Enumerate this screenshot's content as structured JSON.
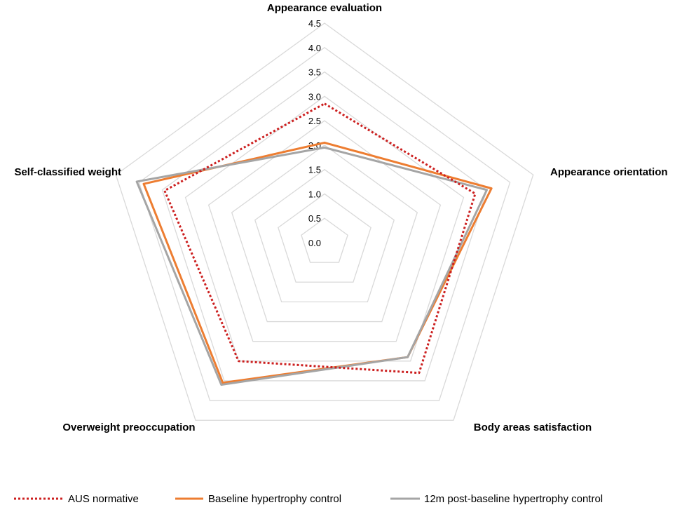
{
  "chart_data": {
    "type": "radar",
    "axes": [
      "Appearance evaluation",
      "Appearance orientation",
      "Body areas satisfaction",
      "Overweight preoccupation",
      "Self-classified weight"
    ],
    "r_range": [
      0,
      4.5
    ],
    "ticks": [
      "0.0",
      "0.5",
      "1.0",
      "1.5",
      "2.0",
      "2.5",
      "3.0",
      "3.5",
      "4.0",
      "4.5"
    ],
    "tick_values": [
      0,
      0.5,
      1.0,
      1.5,
      2.0,
      2.5,
      3.0,
      3.5,
      4.0,
      4.5
    ],
    "grid": true,
    "legend_position": "bottom",
    "series": [
      {
        "name": "AUS normative",
        "values": [
          2.85,
          3.25,
          3.3,
          3.0,
          3.45
        ],
        "color": "#cc1f1f",
        "style": "dotted"
      },
      {
        "name": "Baseline hypertrophy control",
        "values": [
          2.05,
          3.6,
          2.9,
          3.55,
          3.9
        ],
        "color": "#ed7d31",
        "style": "solid"
      },
      {
        "name": "12m post-baseline hypertrophy control",
        "values": [
          1.95,
          3.5,
          2.9,
          3.6,
          4.05
        ],
        "color": "#a5a5a5",
        "style": "solid"
      }
    ]
  }
}
